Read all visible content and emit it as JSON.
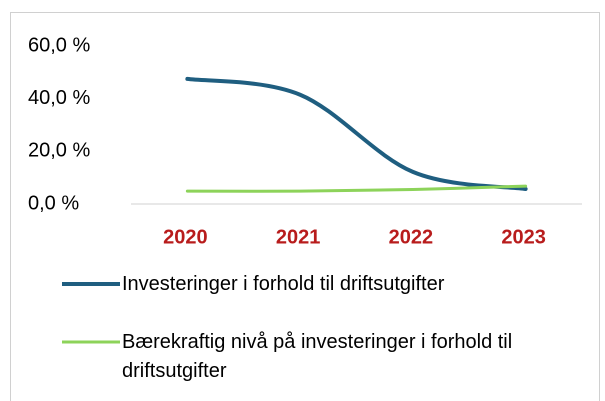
{
  "chart_data": {
    "type": "line",
    "categories": [
      "2020",
      "2021",
      "2022",
      "2023"
    ],
    "series": [
      {
        "name": "Investeringer i forhold til driftsutgifter",
        "color": "#1f5e80",
        "values": [
          47.5,
          41.5,
          12.2,
          5.7
        ]
      },
      {
        "name": "Bærekraftig nivå på investeringer i forhold til driftsutgifter",
        "color": "#8dd35a",
        "values": [
          4.9,
          4.9,
          5.5,
          6.8
        ]
      }
    ],
    "ylim": [
      0,
      60
    ],
    "yticks": [
      {
        "value": 0,
        "label": "0,0 %"
      },
      {
        "value": 20,
        "label": "20,0 %"
      },
      {
        "value": 40,
        "label": "40,0 %"
      },
      {
        "value": 60,
        "label": "60,0 %"
      }
    ],
    "grid": false,
    "legend": "bottom",
    "category_color": "#b81c1c"
  }
}
